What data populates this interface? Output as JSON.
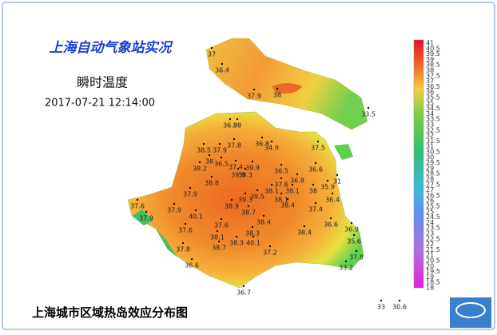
{
  "header": {
    "title": "上海自动气象站实况",
    "subtitle": "瞬时温度",
    "time": "2017-07-21 12:14:00"
  },
  "caption": "上海城市区域热岛效应分布图",
  "legend": {
    "labels": [
      "41",
      "40.5",
      "39.5",
      "39",
      "38.5",
      "38",
      "37.5",
      "37",
      "36.5",
      "36",
      "35.5",
      "35",
      "34.5",
      "34",
      "33.5",
      "33",
      "32.5",
      "32",
      "31.5",
      "31",
      "30.5",
      "30",
      "29.5",
      "29",
      "28.5",
      "28",
      "27.5",
      "27",
      "26.5",
      "26",
      "25.5",
      "25",
      "24.5",
      "24",
      "23.5",
      "23",
      "22.5",
      "22",
      "21.5",
      "21",
      "20.5",
      "20",
      "19.5",
      "19",
      "18.5",
      "18"
    ]
  },
  "stations": [
    37,
    36.4,
    37.9,
    38,
    33.5,
    36.8,
    38,
    37.8,
    36.8,
    34.9,
    37.5,
    38.5,
    37.9,
    38,
    38.2,
    36.5,
    37.4,
    39.9,
    39.9,
    38.3,
    36.5,
    36.6,
    31,
    38.8,
    36.8,
    37.6,
    35.9,
    38.1,
    38.1,
    38,
    37.9,
    39.5,
    39.3,
    38.1,
    36.4,
    37.6,
    38.9,
    38.7,
    38.4,
    37.4,
    37.9,
    40.1,
    37.9,
    37.6,
    38.4,
    36.6,
    37.6,
    38.1,
    38.3,
    38.4,
    36.9,
    38.3,
    40.1,
    35.6,
    37.8,
    38.7,
    37.2,
    37.8,
    36.6,
    33.2,
    36.7,
    33,
    30.6
  ]
}
